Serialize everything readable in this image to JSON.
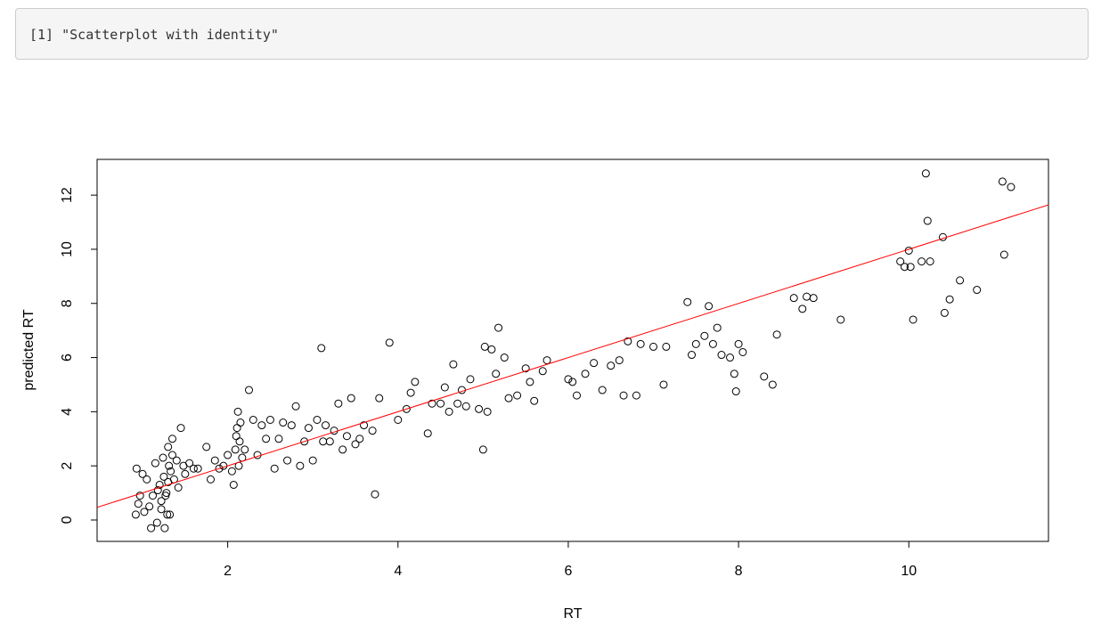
{
  "console_output": "[1] \"Scatterplot with identity\"",
  "chart_data": {
    "type": "scatter",
    "xlabel": "RT",
    "ylabel": "predicted RT",
    "xlim": [
      0.466,
      11.64
    ],
    "ylim": [
      -0.79,
      13.32
    ],
    "xticks": [
      2,
      4,
      6,
      8,
      10
    ],
    "yticks": [
      0,
      2,
      4,
      6,
      8,
      10,
      12
    ],
    "color": "#000000",
    "reference_line": {
      "intercept": 0,
      "slope": 1,
      "color": "#ff0000"
    },
    "x": [
      0.93,
      0.95,
      0.92,
      0.97,
      1.0,
      1.02,
      1.05,
      1.08,
      1.1,
      1.12,
      1.15,
      1.17,
      1.2,
      1.22,
      1.24,
      1.26,
      1.28,
      1.3,
      1.32,
      1.33,
      1.35,
      1.37,
      1.4,
      1.42,
      1.45,
      1.48,
      1.5,
      1.55,
      1.6,
      1.65,
      1.25,
      1.3,
      1.27,
      1.35,
      1.18,
      1.22,
      1.31,
      1.29,
      1.75,
      1.8,
      1.85,
      1.9,
      1.95,
      2.0,
      2.05,
      2.07,
      2.09,
      2.1,
      2.11,
      2.12,
      2.13,
      2.14,
      2.15,
      2.17,
      2.2,
      2.25,
      2.3,
      2.35,
      2.4,
      2.45,
      2.5,
      2.55,
      2.6,
      2.65,
      2.7,
      2.75,
      2.8,
      2.85,
      2.9,
      2.95,
      3.0,
      3.05,
      3.1,
      3.12,
      3.15,
      3.2,
      3.25,
      3.3,
      3.35,
      3.4,
      3.45,
      3.5,
      3.55,
      3.6,
      3.7,
      3.73,
      3.78,
      3.9,
      4.0,
      4.1,
      4.15,
      4.2,
      4.35,
      4.4,
      4.5,
      4.55,
      4.6,
      4.65,
      4.7,
      4.75,
      4.8,
      4.85,
      4.95,
      5.0,
      5.02,
      5.05,
      5.1,
      5.15,
      5.18,
      5.25,
      5.3,
      5.4,
      5.5,
      5.55,
      5.6,
      5.7,
      5.75,
      6.0,
      6.05,
      6.1,
      6.2,
      6.3,
      6.4,
      6.5,
      6.6,
      6.65,
      6.7,
      6.8,
      6.85,
      7.0,
      7.12,
      7.15,
      7.4,
      7.45,
      7.5,
      7.6,
      7.65,
      7.7,
      7.75,
      7.8,
      7.9,
      7.95,
      7.97,
      8.0,
      8.05,
      8.3,
      8.4,
      8.45,
      8.65,
      8.75,
      8.8,
      8.88,
      9.2,
      9.9,
      9.95,
      10.0,
      10.02,
      10.05,
      10.15,
      10.2,
      10.22,
      10.25,
      10.4,
      10.42,
      10.48,
      10.6,
      10.8,
      11.1,
      11.12,
      11.2
    ],
    "y": [
      1.9,
      0.6,
      0.2,
      0.9,
      1.7,
      0.3,
      1.5,
      0.5,
      -0.3,
      0.9,
      2.1,
      -0.1,
      1.3,
      0.4,
      2.3,
      -0.3,
      1.0,
      2.7,
      0.2,
      1.8,
      3.0,
      1.5,
      2.2,
      1.2,
      3.4,
      2.0,
      1.7,
      2.1,
      1.9,
      1.9,
      1.6,
      1.4,
      0.9,
      2.4,
      1.1,
      0.7,
      2.0,
      0.2,
      2.7,
      1.5,
      2.2,
      1.9,
      2.0,
      2.4,
      1.8,
      1.3,
      2.6,
      3.1,
      3.4,
      4.0,
      2.0,
      2.9,
      3.6,
      2.3,
      2.6,
      4.8,
      3.7,
      2.4,
      3.5,
      3.0,
      3.7,
      1.9,
      3.0,
      3.6,
      2.2,
      3.5,
      4.2,
      2.0,
      2.9,
      3.4,
      2.2,
      3.7,
      6.35,
      2.9,
      3.5,
      2.9,
      3.3,
      4.3,
      2.6,
      3.1,
      4.5,
      2.8,
      3.0,
      3.5,
      3.3,
      0.95,
      4.5,
      6.55,
      3.7,
      4.1,
      4.7,
      5.1,
      3.2,
      4.3,
      4.3,
      4.9,
      4.0,
      5.75,
      4.3,
      4.8,
      4.2,
      5.2,
      4.1,
      2.6,
      6.4,
      4.0,
      6.3,
      5.4,
      7.1,
      6.0,
      4.5,
      4.6,
      5.6,
      5.1,
      4.4,
      5.5,
      5.9,
      5.2,
      5.1,
      4.6,
      5.4,
      5.8,
      4.8,
      5.7,
      5.9,
      4.6,
      6.6,
      4.6,
      6.5,
      6.4,
      5.0,
      6.4,
      8.05,
      6.1,
      6.5,
      6.8,
      7.9,
      6.5,
      7.1,
      6.1,
      6.0,
      5.4,
      4.75,
      6.5,
      6.2,
      5.3,
      5.0,
      6.85,
      8.2,
      7.8,
      8.25,
      8.2,
      7.4,
      9.55,
      9.35,
      9.95,
      9.35,
      7.4,
      9.55,
      12.8,
      11.05,
      9.55,
      10.45,
      7.65,
      8.15,
      8.85,
      8.5,
      12.5,
      9.8,
      12.3
    ]
  }
}
